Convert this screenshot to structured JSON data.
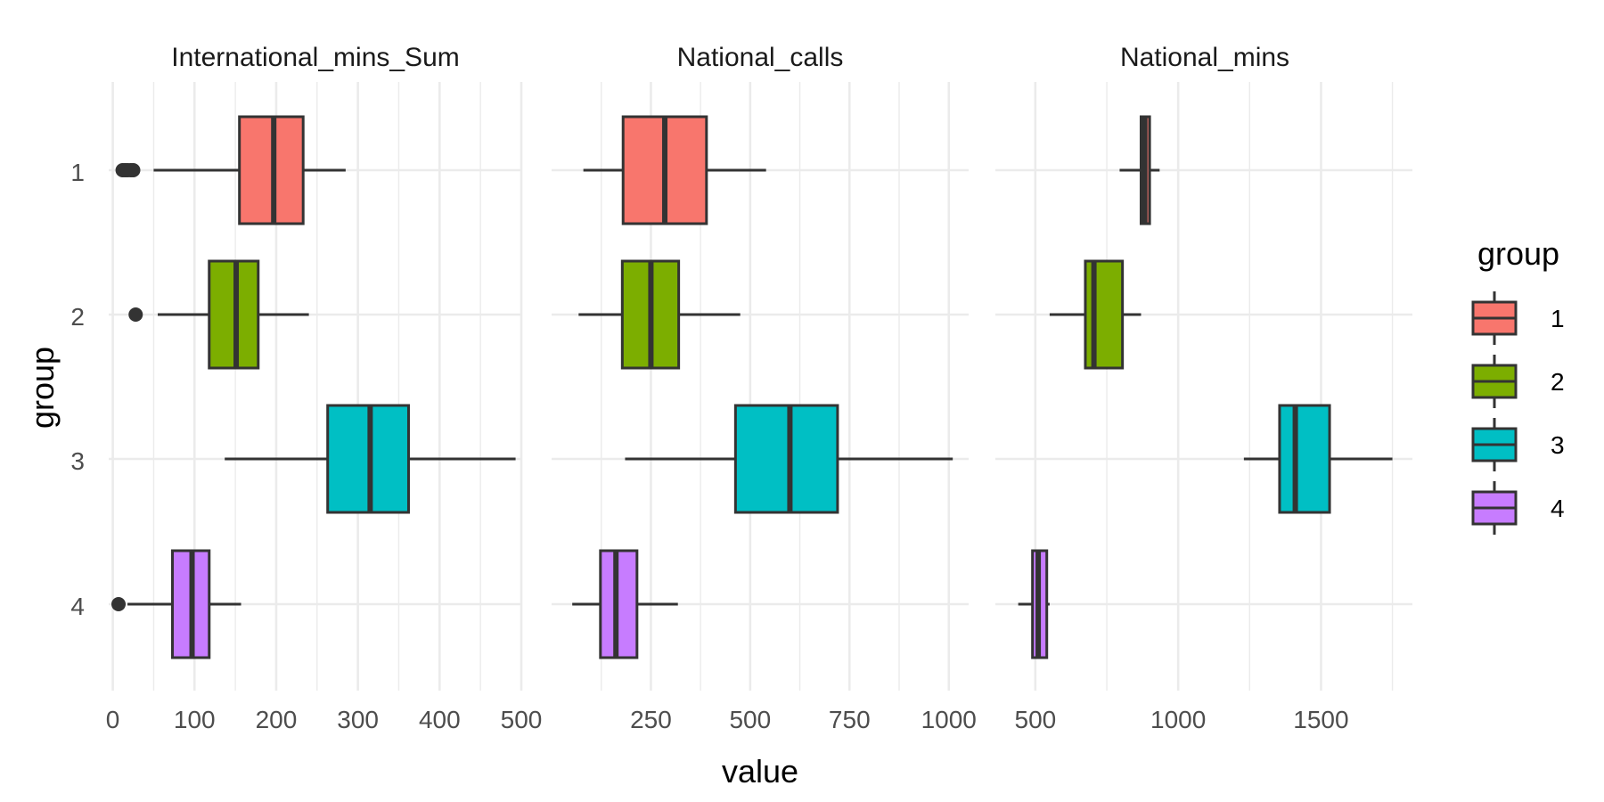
{
  "chart_data": {
    "type": "boxplot",
    "orientation": "horizontal",
    "facet_titles": [
      "International_mins_Sum",
      "National_calls",
      "National_mins"
    ],
    "x_axis_label": "value",
    "y_axis_label": "group",
    "groups": [
      "1",
      "2",
      "3",
      "4"
    ],
    "legend": {
      "title": "group",
      "position": "right",
      "entries": [
        {
          "label": "1",
          "color": "#F8766D"
        },
        {
          "label": "2",
          "color": "#7CAE00"
        },
        {
          "label": "3",
          "color": "#00BFC4"
        },
        {
          "label": "4",
          "color": "#C77CFF"
        }
      ]
    },
    "grid": true,
    "facets": [
      {
        "name": "International_mins_Sum",
        "xlim": [
          -5,
          500
        ],
        "ticks": [
          0,
          100,
          200,
          300,
          400,
          500
        ],
        "tick_labels": [
          "0",
          "100",
          "200",
          "300",
          "400",
          "500"
        ],
        "boxes": [
          {
            "group": "1",
            "whisker_low": 50,
            "q1": 155,
            "median": 197,
            "q3": 233,
            "whisker_high": 285,
            "outliers": [
              12,
              15,
              18,
              22,
              25
            ]
          },
          {
            "group": "2",
            "whisker_low": 55,
            "q1": 118,
            "median": 151,
            "q3": 178,
            "whisker_high": 240,
            "outliers": [
              28
            ]
          },
          {
            "group": "3",
            "whisker_low": 137,
            "q1": 263,
            "median": 315,
            "q3": 362,
            "whisker_high": 493,
            "outliers": []
          },
          {
            "group": "4",
            "whisker_low": 18,
            "q1": 73,
            "median": 97,
            "q3": 118,
            "whisker_high": 157,
            "outliers": [
              7
            ]
          }
        ]
      },
      {
        "name": "National_calls",
        "xlim": [
          0,
          1050
        ],
        "ticks": [
          250,
          500,
          750,
          1000
        ],
        "tick_labels": [
          "250",
          "500",
          "750",
          "1000"
        ],
        "boxes": [
          {
            "group": "1",
            "whisker_low": 80,
            "q1": 180,
            "median": 285,
            "q3": 390,
            "whisker_high": 540,
            "outliers": []
          },
          {
            "group": "2",
            "whisker_low": 68,
            "q1": 178,
            "median": 250,
            "q3": 320,
            "whisker_high": 475,
            "outliers": []
          },
          {
            "group": "3",
            "whisker_low": 185,
            "q1": 463,
            "median": 600,
            "q3": 720,
            "whisker_high": 1010,
            "outliers": []
          },
          {
            "group": "4",
            "whisker_low": 52,
            "q1": 123,
            "median": 162,
            "q3": 215,
            "whisker_high": 318,
            "outliers": []
          }
        ]
      },
      {
        "name": "National_mins",
        "xlim": [
          360,
          1820
        ],
        "ticks": [
          500,
          1000,
          1500
        ],
        "tick_labels": [
          "500",
          "1000",
          "1500"
        ],
        "boxes": [
          {
            "group": "1",
            "whisker_low": 795,
            "q1": 870,
            "median": 883,
            "q3": 900,
            "whisker_high": 935,
            "outliers": []
          },
          {
            "group": "2",
            "whisker_low": 550,
            "q1": 675,
            "median": 705,
            "q3": 805,
            "whisker_high": 870,
            "outliers": []
          },
          {
            "group": "3",
            "whisker_low": 1230,
            "q1": 1355,
            "median": 1410,
            "q3": 1530,
            "whisker_high": 1750,
            "outliers": []
          },
          {
            "group": "4",
            "whisker_low": 440,
            "q1": 490,
            "median": 510,
            "q3": 540,
            "whisker_high": 550,
            "outliers": []
          }
        ]
      }
    ]
  }
}
